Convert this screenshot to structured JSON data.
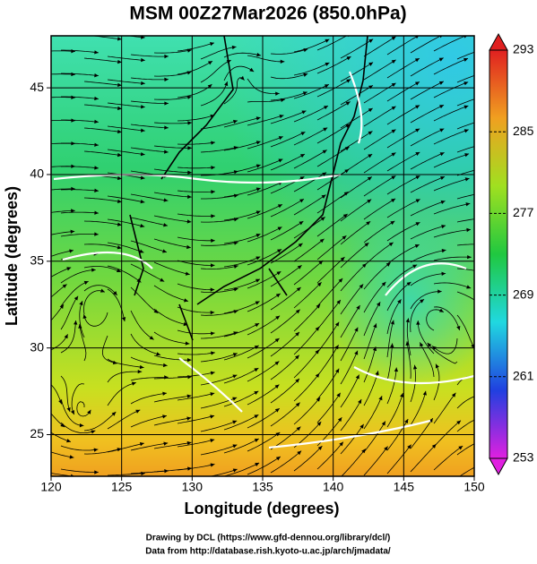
{
  "chart_data": {
    "type": "map",
    "title": "MSM 00Z27Mar2026 (850.0hPa)",
    "x_label": "Longitude (degrees)",
    "y_label": "Latitude  (degrees)",
    "xlim": [
      120,
      150
    ],
    "xticks": [
      120,
      125,
      130,
      135,
      140,
      145,
      150
    ],
    "ylim": [
      22.6,
      48
    ],
    "yticks": [
      25,
      30,
      35,
      40,
      45
    ],
    "grid": true,
    "colorbar": {
      "lim": [
        253,
        293
      ],
      "ticks": [
        253,
        261,
        269,
        277,
        285,
        293
      ],
      "colors": [
        "#e020e0",
        "#2040e0",
        "#20d8e0",
        "#20c840",
        "#a0e020",
        "#f0a020",
        "#e02020"
      ]
    }
  },
  "footer": [
    "Drawing by DCL (https://www.gfd-dennou.org/library/dcl/)",
    "Data from http://database.rish.kyoto-u.ac.jp/arch/jmadata/"
  ]
}
